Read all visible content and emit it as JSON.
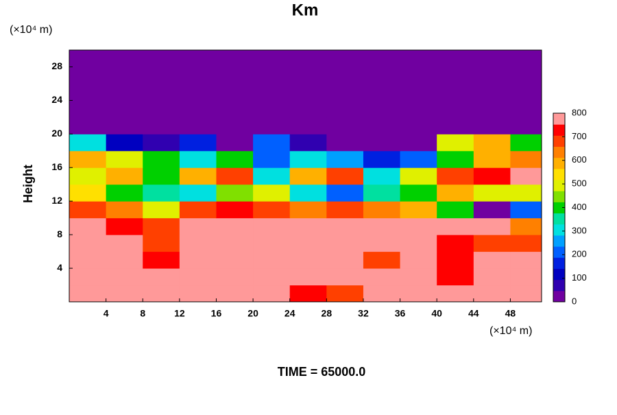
{
  "chart_data": {
    "type": "heatmap",
    "title": "Km",
    "y_unit_label": "(×10⁴ m)",
    "x_unit_label": "(×10⁴ m)",
    "ylabel": "Height",
    "footer": "TIME = 65000.0",
    "xlim": [
      0,
      51.4
    ],
    "ylim": [
      0,
      30
    ],
    "xticks": [
      4,
      8,
      12,
      16,
      20,
      24,
      28,
      32,
      36,
      40,
      44,
      48
    ],
    "yticks": [
      4,
      8,
      12,
      16,
      20,
      24,
      28
    ],
    "clim": [
      0,
      800
    ],
    "cticks": [
      0,
      100,
      200,
      300,
      400,
      500,
      600,
      700,
      800
    ],
    "colorscale": [
      "#7000a0",
      "#3000b0",
      "#0000c0",
      "#0020e0",
      "#0060ff",
      "#00a0ff",
      "#00e0e0",
      "#00e0a0",
      "#00d000",
      "#80e000",
      "#e0f000",
      "#ffe000",
      "#ffb000",
      "#ff8000",
      "#ff4000",
      "#ff0000",
      "#ff9999"
    ],
    "x": [
      2,
      6,
      10,
      14,
      18,
      22,
      26,
      30,
      34,
      38,
      42,
      46,
      50
    ],
    "y": [
      1,
      3,
      5,
      7,
      9,
      11,
      13,
      15,
      17,
      19,
      21,
      23,
      25,
      27,
      29
    ],
    "z": [
      [
        800,
        800,
        800,
        800,
        800,
        800,
        750,
        700,
        800,
        800,
        800,
        800,
        800
      ],
      [
        800,
        800,
        800,
        800,
        800,
        800,
        800,
        800,
        800,
        800,
        750,
        800,
        800
      ],
      [
        800,
        800,
        750,
        800,
        800,
        800,
        800,
        800,
        700,
        800,
        750,
        800,
        800
      ],
      [
        800,
        800,
        700,
        800,
        800,
        800,
        800,
        800,
        800,
        800,
        750,
        700,
        700
      ],
      [
        800,
        750,
        700,
        800,
        800,
        800,
        800,
        800,
        800,
        800,
        800,
        800,
        650
      ],
      [
        700,
        650,
        500,
        700,
        750,
        700,
        650,
        700,
        650,
        600,
        400,
        0,
        200
      ],
      [
        550,
        400,
        350,
        300,
        450,
        500,
        300,
        200,
        350,
        400,
        600,
        500,
        500
      ],
      [
        500,
        600,
        400,
        600,
        700,
        300,
        600,
        700,
        300,
        500,
        700,
        750,
        800
      ],
      [
        600,
        500,
        400,
        300,
        400,
        200,
        300,
        250,
        150,
        200,
        400,
        600,
        650
      ],
      [
        300,
        100,
        50,
        150,
        0,
        200,
        50,
        0,
        0,
        0,
        500,
        600,
        400
      ],
      [
        0,
        0,
        0,
        0,
        0,
        0,
        0,
        0,
        0,
        0,
        0,
        0,
        0
      ],
      [
        0,
        0,
        0,
        0,
        0,
        0,
        0,
        0,
        0,
        0,
        0,
        0,
        0
      ],
      [
        0,
        0,
        0,
        0,
        0,
        0,
        0,
        0,
        0,
        0,
        0,
        0,
        0
      ],
      [
        0,
        0,
        0,
        0,
        0,
        0,
        0,
        0,
        0,
        0,
        0,
        0,
        0
      ],
      [
        0,
        0,
        0,
        0,
        0,
        0,
        0,
        0,
        0,
        0,
        0,
        0,
        0
      ]
    ]
  }
}
